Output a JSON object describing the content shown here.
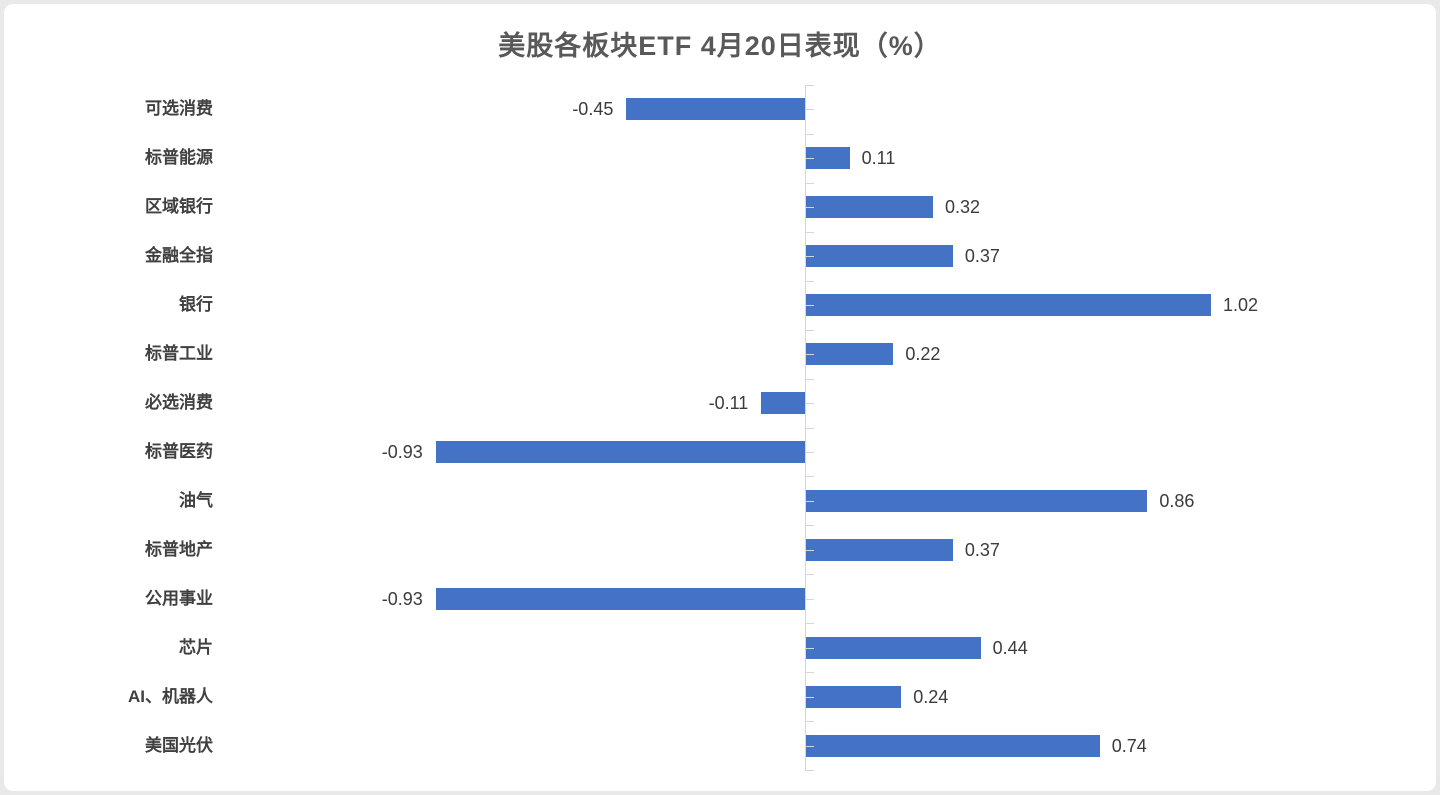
{
  "chart_data": {
    "type": "bar",
    "orientation": "horizontal",
    "title": "美股各板块ETF 4月20日表现（%）",
    "categories": [
      "可选消费",
      "标普能源",
      "区域银行",
      "金融全指",
      "银行",
      "标普工业",
      "必选消费",
      "标普医药",
      "油气",
      "标普地产",
      "公用事业",
      "芯片",
      "AI、机器人",
      "美国光伏"
    ],
    "values": [
      -0.45,
      0.11,
      0.32,
      0.37,
      1.02,
      0.22,
      -0.11,
      -0.93,
      0.86,
      0.37,
      -0.93,
      0.44,
      0.24,
      0.74
    ],
    "value_labels": [
      "-0.45",
      "0.11",
      "0.32",
      "0.37",
      "1.02",
      "0.22",
      "-0.11",
      "-0.93",
      "0.86",
      "0.37",
      "-0.93",
      "0.44",
      "0.24",
      "0.74"
    ],
    "xlim": [
      -1.0,
      1.2
    ],
    "grid": false,
    "legend": null,
    "data_labels": true,
    "bar_color": "#4472c4",
    "axis_color": "#d6d6d6",
    "title_color": "#595959",
    "label_color": "#404040",
    "background_color": "#ffffff"
  }
}
